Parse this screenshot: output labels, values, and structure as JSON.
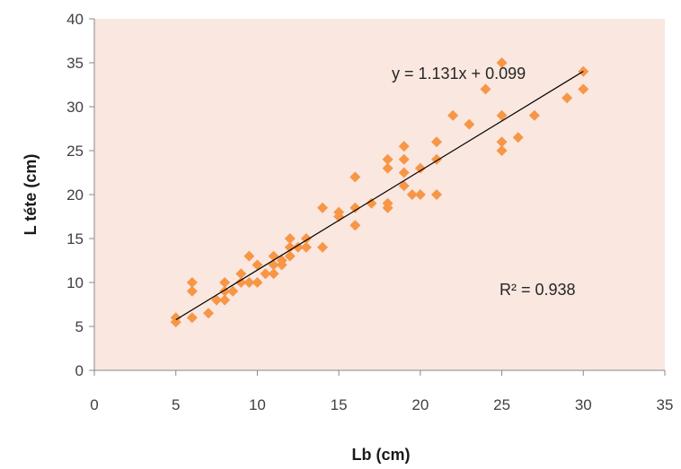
{
  "chart_data": {
    "type": "scatter",
    "title": "",
    "xlabel": "Lb (cm)",
    "ylabel": "L téte (cm)",
    "xlim": [
      0,
      35
    ],
    "ylim": [
      0,
      40
    ],
    "xticks": [
      0,
      5,
      10,
      15,
      20,
      25,
      30,
      35
    ],
    "yticks": [
      0,
      5,
      10,
      15,
      20,
      25,
      30,
      35,
      40
    ],
    "grid": false,
    "legend": "none",
    "colors": {
      "plot_background": "#f9e7e0",
      "marker": "#f79646",
      "trendline": "#000000",
      "axis": "#888888"
    },
    "series": [
      {
        "marker": "diamond",
        "x": [
          5,
          5,
          6,
          6,
          6,
          7,
          7.5,
          8,
          8,
          8,
          8.5,
          9,
          9,
          9.5,
          9.5,
          10,
          10,
          10.5,
          11,
          11,
          11,
          11.5,
          11.5,
          12,
          12,
          12,
          12.5,
          13,
          13,
          14,
          14,
          15,
          15,
          16,
          16,
          16,
          17,
          18,
          18,
          18,
          18,
          19,
          19,
          19,
          19,
          19.5,
          20,
          20,
          21,
          21,
          21,
          22,
          23,
          24,
          25,
          25,
          25,
          25,
          26,
          27,
          29,
          30,
          30
        ],
        "y": [
          5.5,
          6,
          6,
          9,
          10,
          6.5,
          8,
          8,
          9,
          10,
          9,
          10,
          11,
          10,
          13,
          10,
          12,
          11,
          11,
          12,
          13,
          12,
          12.5,
          13,
          14,
          15,
          14,
          14,
          15,
          14,
          18.5,
          17.5,
          18,
          16.5,
          18.5,
          22,
          19,
          18.5,
          19,
          23,
          24,
          21,
          22.5,
          24,
          25.5,
          20,
          20,
          23,
          20,
          24,
          26,
          29,
          28,
          32,
          25,
          26,
          29,
          35,
          26.5,
          29,
          31,
          32,
          34
        ]
      }
    ],
    "trendline": {
      "type": "linear",
      "slope": 1.131,
      "intercept": 0.099,
      "x_range": [
        5,
        30
      ],
      "equation_label": "y = 1.131x + 0.099",
      "r2_label": "R² = 0.938"
    }
  }
}
